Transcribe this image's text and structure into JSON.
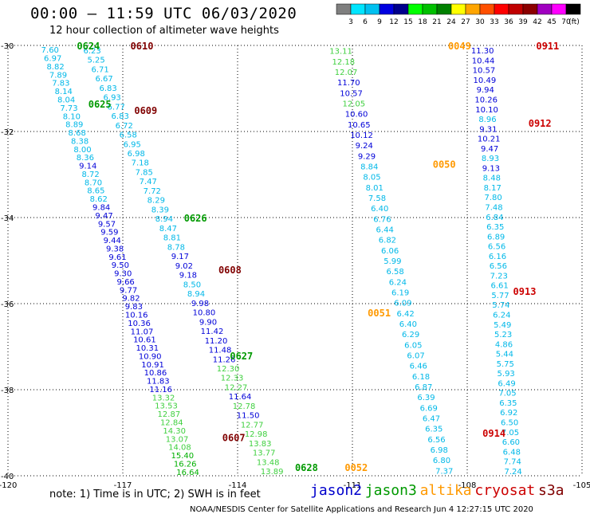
{
  "header": {
    "title": "00:00 – 11:59 UTC 06/03/2020",
    "subtitle": "12 hour collection of altimeter wave heights"
  },
  "colorbar": {
    "labels": [
      "3",
      "6",
      "9",
      "12",
      "15",
      "18",
      "21",
      "24",
      "27",
      "30",
      "33",
      "36",
      "39",
      "42",
      "45",
      "70",
      "(ft)"
    ],
    "colors": [
      "#7f7f7f",
      "#00e5ff",
      "#00c0f0",
      "#0000e0",
      "#00008c",
      "#00ff00",
      "#00c000",
      "#008000",
      "#ffff00",
      "#ffa500",
      "#ff5000",
      "#ff0000",
      "#c00000",
      "#8b0000",
      "#a000c0",
      "#ff00ff",
      "#000000"
    ]
  },
  "note": "note: 1) Time is in UTC; 2) SWH is in feet",
  "satellites": [
    {
      "name": "jason2",
      "color": "#0000cc"
    },
    {
      "name": "jason3",
      "color": "#009900"
    },
    {
      "name": "altika",
      "color": "#ff9900"
    },
    {
      "name": "cryosat",
      "color": "#cc0000"
    },
    {
      "name": "s3a",
      "color": "#800000"
    }
  ],
  "footer": "NOAA/NESDIS Center for Satellite Applications and Research    Jun  4 12:27:15 UTC 2020",
  "chart_data": {
    "type": "scatter",
    "title": "00:00 – 11:59 UTC 06/03/2020",
    "subtitle": "12 hour collection of altimeter wave heights",
    "xlabel": "",
    "ylabel": "",
    "xlim": [
      -120,
      -105
    ],
    "ylim": [
      -40,
      -30
    ],
    "x_ticks": [
      -120,
      -117,
      -114,
      -111,
      -108,
      -105
    ],
    "y_ticks": [
      -30,
      -32,
      -34,
      -36,
      -38,
      -40
    ],
    "grid": true,
    "units": "ft",
    "tracks": [
      {
        "x0": -118.9,
        "x1": -115.3,
        "values": [
          "7.60",
          "6.97",
          "8.82",
          "7.89",
          "7.83",
          "8.14",
          "8.04",
          "7.73",
          "8.10",
          "8.89",
          "8.68",
          "8.38",
          "8.00",
          "8.36",
          "9.14",
          "8.72",
          "8.70",
          "8.65",
          "8.62",
          "9.84",
          "9.47",
          "9.57",
          "9.59",
          "9.44",
          "9.38",
          "9.61",
          "9.50",
          "9.30",
          "9.66",
          "9.77",
          "9.82",
          "9.83",
          "10.16",
          "10.36",
          "11.07",
          "10.61",
          "10.31",
          "10.90",
          "10.91",
          "10.86",
          "11.83",
          "11.16",
          "13.32",
          "13.53",
          "12.87",
          "12.84",
          "14.30",
          "13.07",
          "14.08",
          "15.40",
          "16.26",
          "16.64"
        ]
      },
      {
        "x0": -117.8,
        "x1": -113.1,
        "values": [
          "6.23",
          "5.25",
          "6.71",
          "6.67",
          "6.83",
          "6.93",
          "6.77",
          "6.83",
          "6.72",
          "6.58",
          "6.95",
          "6.98",
          "7.18",
          "7.85",
          "7.47",
          "7.72",
          "8.29",
          "8.39",
          "8.94",
          "8.47",
          "8.81",
          "8.78",
          "9.17",
          "9.02",
          "9.18",
          "8.50",
          "8.94",
          "9.98",
          "10.80",
          "9.90",
          "11.42",
          "11.20",
          "11.48",
          "11.26",
          "12.30",
          "12.33",
          "12.27",
          "11.64",
          "12.78",
          "11.50",
          "12.77",
          "12.98",
          "13.83",
          "13.77",
          "13.48",
          "13.89"
        ]
      },
      {
        "x0": -111.3,
        "x1": -108.6,
        "values": [
          "13.11",
          "12.18",
          "12.07",
          "11.70",
          "10.57",
          "12.05",
          "10.60",
          "10.65",
          "10.12",
          "9.24",
          "9.29",
          "8.84",
          "8.05",
          "8.01",
          "7.58",
          "6.40",
          "6.76",
          "6.44",
          "6.82",
          "6.06",
          "5.99",
          "6.58",
          "6.24",
          "6.19",
          "6.09",
          "6.42",
          "6.40",
          "6.29",
          "6.05",
          "6.07",
          "6.46",
          "6.18",
          "6.87",
          "6.39",
          "6.69",
          "6.47",
          "6.35",
          "6.56",
          "6.98",
          "6.80",
          "7.37"
        ]
      },
      {
        "x0": -107.6,
        "x1": -106.8,
        "values": [
          "11.30",
          "10.44",
          "10.57",
          "10.49",
          "9.94",
          "10.26",
          "10.10",
          "8.96",
          "9.31",
          "10.21",
          "9.47",
          "8.93",
          "9.13",
          "8.48",
          "8.17",
          "7.80",
          "7.48",
          "6.84",
          "6.35",
          "6.89",
          "6.56",
          "6.16",
          "6.56",
          "7.23",
          "6.61",
          "5.77",
          "5.74",
          "6.24",
          "5.49",
          "5.23",
          "4.86",
          "5.44",
          "5.75",
          "5.93",
          "6.49",
          "7.05",
          "6.35",
          "6.92",
          "6.50",
          "7.05",
          "6.60",
          "6.48",
          "7.74",
          "7.24"
        ]
      }
    ],
    "pass_times": [
      {
        "label": "0624",
        "lon": -117.9,
        "lat": -30.0,
        "satellite": "jason3"
      },
      {
        "label": "0610",
        "lon": -116.5,
        "lat": -30.0,
        "satellite": "s3a"
      },
      {
        "label": "0625",
        "lon": -117.6,
        "lat": -31.35,
        "satellite": "jason3"
      },
      {
        "label": "0609",
        "lon": -116.4,
        "lat": -31.5,
        "satellite": "s3a"
      },
      {
        "label": "0626",
        "lon": -115.1,
        "lat": -34.0,
        "satellite": "jason3"
      },
      {
        "label": "0608",
        "lon": -114.2,
        "lat": -35.2,
        "satellite": "s3a"
      },
      {
        "label": "0627",
        "lon": -113.9,
        "lat": -37.2,
        "satellite": "jason3"
      },
      {
        "label": "0607",
        "lon": -114.1,
        "lat": -39.1,
        "satellite": "s3a"
      },
      {
        "label": "0628",
        "lon": -112.2,
        "lat": -39.8,
        "satellite": "jason3"
      },
      {
        "label": "0052",
        "lon": -110.9,
        "lat": -39.8,
        "satellite": "altika"
      },
      {
        "label": "0051",
        "lon": -110.3,
        "lat": -36.2,
        "satellite": "altika"
      },
      {
        "label": "0050",
        "lon": -108.6,
        "lat": -32.75,
        "satellite": "altika"
      },
      {
        "label": "0049",
        "lon": -108.2,
        "lat": -30.0,
        "satellite": "altika"
      },
      {
        "label": "0911",
        "lon": -105.9,
        "lat": -30.0,
        "satellite": "cryosat"
      },
      {
        "label": "0912",
        "lon": -106.1,
        "lat": -31.8,
        "satellite": "cryosat"
      },
      {
        "label": "0913",
        "lon": -106.5,
        "lat": -35.7,
        "satellite": "cryosat"
      },
      {
        "label": "0914",
        "lon": -107.3,
        "lat": -39.0,
        "satellite": "cryosat"
      }
    ]
  }
}
